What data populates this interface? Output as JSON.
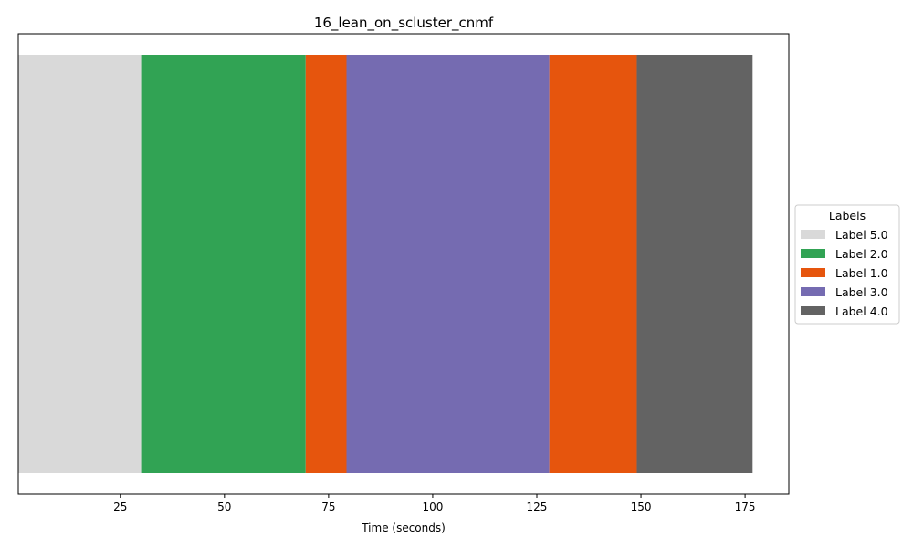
{
  "chart_data": {
    "type": "bar",
    "orientation": "horizontal-timeline",
    "title": "16_lean_on_scluster_cnmf",
    "xlabel": "Time (seconds)",
    "ylabel": "",
    "xlim": [
      0.5,
      185.5
    ],
    "xticks": [
      25,
      50,
      75,
      100,
      125,
      150,
      175
    ],
    "grid": false,
    "legend": {
      "title": "Labels",
      "placement": "center-right outside",
      "entries": [
        {
          "label": "Label 5.0",
          "color": "#d9d9d9"
        },
        {
          "label": "Label 2.0",
          "color": "#31a354"
        },
        {
          "label": "Label 1.0",
          "color": "#e6550d"
        },
        {
          "label": "Label 3.0",
          "color": "#756bb1"
        },
        {
          "label": "Label 4.0",
          "color": "#636363"
        }
      ]
    },
    "segments": [
      {
        "label": "Label 5.0",
        "start": 0.5,
        "end": 30.0,
        "color": "#d9d9d9"
      },
      {
        "label": "Label 2.0",
        "start": 30.0,
        "end": 69.5,
        "color": "#31a354"
      },
      {
        "label": "Label 1.0",
        "start": 69.5,
        "end": 79.3,
        "color": "#e6550d"
      },
      {
        "label": "Label 3.0",
        "start": 79.3,
        "end": 128.0,
        "color": "#756bb1"
      },
      {
        "label": "Label 1.0",
        "start": 128.0,
        "end": 149.0,
        "color": "#e6550d"
      },
      {
        "label": "Label 4.0",
        "start": 149.0,
        "end": 176.8,
        "color": "#636363"
      }
    ]
  }
}
